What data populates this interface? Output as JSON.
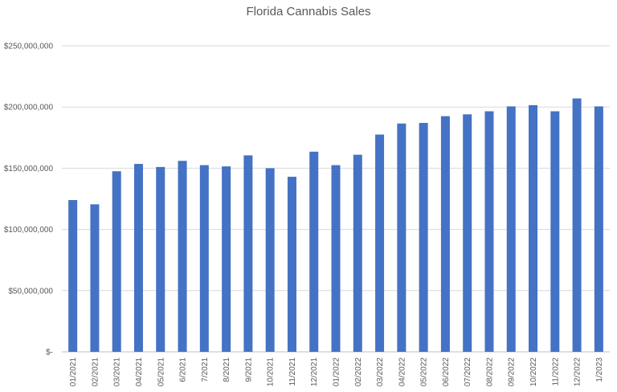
{
  "chart_data": {
    "type": "bar",
    "title": "Florida Cannabis Sales",
    "xlabel": "",
    "ylabel": "",
    "categories": [
      "01/2021",
      "02/2021",
      "03/2021",
      "04/2021",
      "05/2021",
      "6/2021",
      "7/2021",
      "8/2021",
      "9/2021",
      "10/2021",
      "11/2021",
      "12/2021",
      "01/2022",
      "02/2022",
      "03/2022",
      "04/2022",
      "05/2022",
      "06/2022",
      "07/2022",
      "08/2022",
      "09/2022",
      "10/2022",
      "11/2022",
      "12/2022",
      "1/2023"
    ],
    "values": [
      124000000,
      120500000,
      147500000,
      153500000,
      151000000,
      156000000,
      152500000,
      151500000,
      160500000,
      150000000,
      143000000,
      163500000,
      152500000,
      161000000,
      177500000,
      186500000,
      187000000,
      192500000,
      194000000,
      196500000,
      200500000,
      201500000,
      196500000,
      207000000,
      200500000
    ],
    "ylim": [
      0,
      250000000
    ],
    "yticks": [
      0,
      50000000,
      100000000,
      150000000,
      200000000,
      250000000
    ],
    "ytick_labels": [
      "$-",
      "$50,000,000",
      "$100,000,000",
      "$150,000,000",
      "$200,000,000",
      "$250,000,000"
    ],
    "grid": true,
    "bar_color": "#4472c4",
    "grid_color": "#d9d9d9",
    "text_color": "#595959"
  }
}
